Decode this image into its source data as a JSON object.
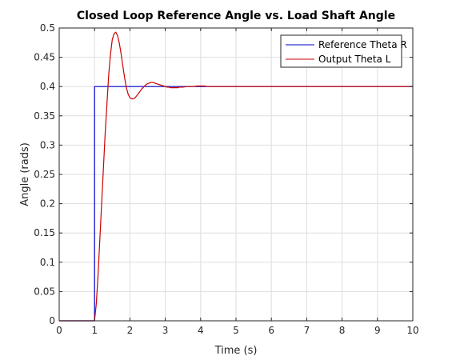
{
  "chart_data": {
    "type": "line",
    "title": "Closed Loop Reference Angle vs. Load Shaft Angle",
    "xlabel": "Time (s)",
    "ylabel": "Angle (rads)",
    "xlim": [
      0,
      10
    ],
    "ylim": [
      0,
      0.5
    ],
    "xticks": [
      "0",
      "1",
      "2",
      "3",
      "4",
      "5",
      "6",
      "7",
      "8",
      "9",
      "10"
    ],
    "yticks": [
      "0",
      "0.05",
      "0.1",
      "0.15",
      "0.2",
      "0.25",
      "0.3",
      "0.35",
      "0.4",
      "0.45",
      "0.5"
    ],
    "grid": true,
    "legend_position": "top-right",
    "series": [
      {
        "name": "Reference Theta R",
        "color": "#0000cc",
        "x": [
          0,
          1,
          1,
          10
        ],
        "y": [
          0,
          0,
          0.4,
          0.4
        ]
      },
      {
        "name": "Output Theta L",
        "color": "#cc0000",
        "x": [
          0,
          1,
          1.05,
          1.1,
          1.15,
          1.2,
          1.25,
          1.3,
          1.35,
          1.4,
          1.45,
          1.5,
          1.55,
          1.6,
          1.65,
          1.7,
          1.75,
          1.8,
          1.85,
          1.9,
          1.95,
          2.0,
          2.05,
          2.1,
          2.15,
          2.2,
          2.25,
          2.3,
          2.35,
          2.4,
          2.45,
          2.5,
          2.55,
          2.6,
          2.65,
          2.7,
          2.75,
          2.8,
          2.85,
          2.9,
          2.95,
          3.0,
          3.05,
          3.1,
          3.15,
          3.2,
          3.25,
          3.3,
          3.35,
          3.4,
          3.5,
          3.6,
          3.7,
          3.8,
          3.9,
          4.0,
          4.1,
          4.2,
          4.3,
          4.5,
          5.0,
          6.0,
          7.0,
          8.0,
          9.0,
          10.0
        ],
        "y": [
          0,
          0,
          0.03,
          0.08,
          0.14,
          0.2,
          0.26,
          0.32,
          0.37,
          0.42,
          0.455,
          0.48,
          0.49,
          0.493,
          0.487,
          0.474,
          0.456,
          0.435,
          0.415,
          0.398,
          0.387,
          0.381,
          0.379,
          0.379,
          0.381,
          0.385,
          0.389,
          0.393,
          0.397,
          0.4,
          0.403,
          0.405,
          0.406,
          0.407,
          0.407,
          0.406,
          0.405,
          0.404,
          0.403,
          0.402,
          0.401,
          0.4,
          0.399,
          0.399,
          0.398,
          0.398,
          0.398,
          0.398,
          0.398,
          0.399,
          0.399,
          0.4,
          0.4,
          0.4,
          0.401,
          0.401,
          0.401,
          0.4,
          0.4,
          0.4,
          0.4,
          0.4,
          0.4,
          0.4,
          0.4,
          0.4
        ]
      }
    ]
  }
}
